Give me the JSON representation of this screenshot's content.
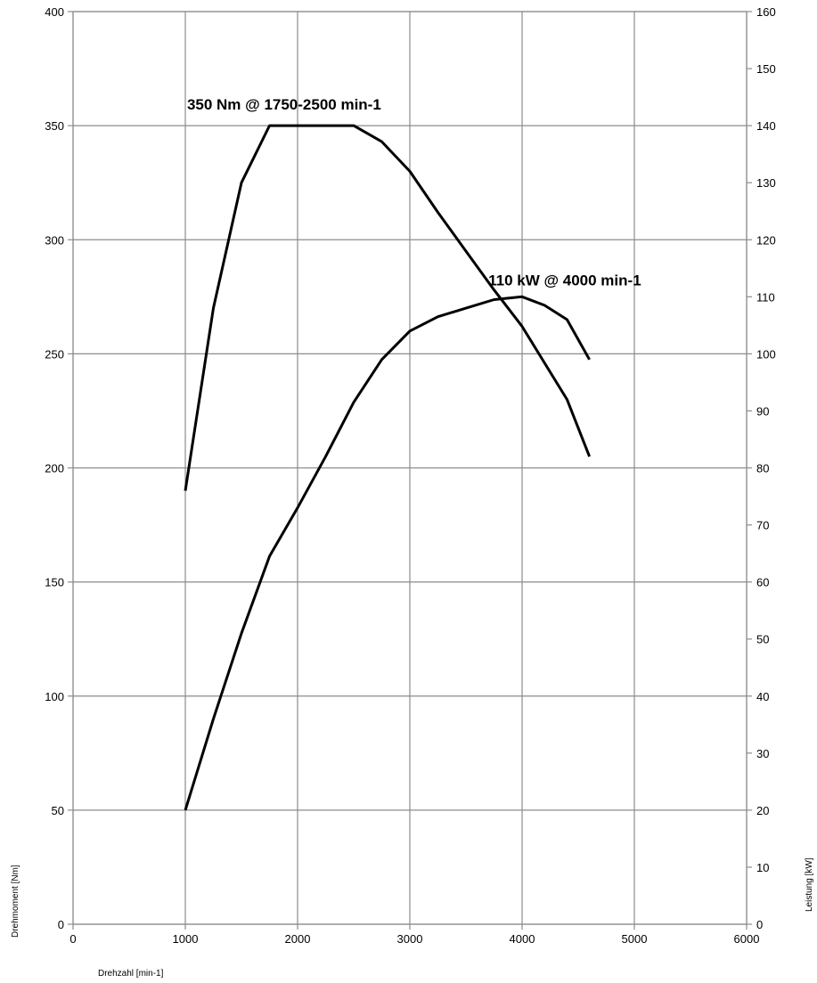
{
  "chart_data": {
    "type": "line",
    "xlabel": "Drehzahl [min-1]",
    "ylabel_left": "Drehmoment [Nm]",
    "ylabel_right": "Leistung [kW]",
    "xlim": [
      0,
      6000
    ],
    "ylim_left": [
      0,
      400
    ],
    "ylim_right": [
      0,
      160
    ],
    "x_ticks": [
      "0",
      "1000",
      "2000",
      "3000",
      "4000",
      "5000",
      "6000"
    ],
    "y_left_ticks": [
      "0",
      "50",
      "100",
      "150",
      "200",
      "250",
      "300",
      "350",
      "400"
    ],
    "y_right_ticks": [
      "0",
      "10",
      "20",
      "30",
      "40",
      "50",
      "60",
      "70",
      "80",
      "90",
      "100",
      "110",
      "120",
      "130",
      "140",
      "150",
      "160"
    ],
    "grid": true,
    "line_color": "#000000",
    "grid_color": "#8c8c8c",
    "series": [
      {
        "axis": "left",
        "x": [
          1000,
          1250,
          1500,
          1750,
          2000,
          2250,
          2500,
          2750,
          3000,
          3250,
          3500,
          3750,
          4000,
          4200,
          4400,
          4600
        ],
        "y": [
          190,
          270,
          325,
          350,
          350,
          350,
          350,
          343,
          330,
          312,
          295,
          278,
          262,
          246,
          230,
          205
        ]
      },
      {
        "axis": "right",
        "x": [
          1000,
          1250,
          1500,
          1750,
          2000,
          2250,
          2500,
          2750,
          3000,
          3250,
          3500,
          3750,
          4000,
          4200,
          4400,
          4600
        ],
        "y": [
          20,
          36,
          51,
          64.5,
          73,
          82,
          91.5,
          99,
          104,
          106.5,
          108,
          109.5,
          110,
          108.5,
          106,
          99
        ]
      }
    ],
    "annotations": [
      {
        "text": "350 Nm @ 1750-2500 min-1",
        "x": 1880,
        "y_left": 357
      },
      {
        "text": "110 kW @ 4000 min-1",
        "x": 4380,
        "y_right": 112
      }
    ]
  }
}
